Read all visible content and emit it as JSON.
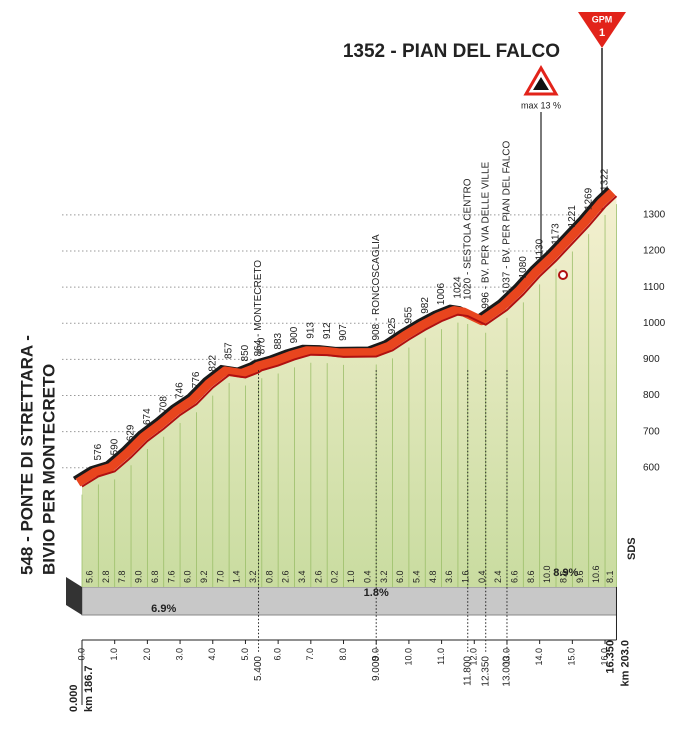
{
  "chart_data": {
    "type": "profile",
    "title": "1352 - PIAN DEL FALCO",
    "start_label": [
      "548 - PONTE DI STRETTARA -",
      "BIVIO PER MONTECRETO"
    ],
    "climb_category": {
      "badge": "GPM",
      "rank": "1"
    },
    "max_gradient": "max 13 %",
    "sponsor_tag": "SDS",
    "x": [
      0,
      0.5,
      1,
      1.5,
      2,
      2.5,
      3,
      3.5,
      4,
      4.5,
      5,
      5.4,
      5.5,
      6,
      6.5,
      7,
      7.5,
      8,
      9,
      9.5,
      10,
      10.5,
      11,
      11.5,
      11.8,
      12.35,
      13,
      13.5,
      14,
      14.5,
      15,
      15.5,
      16,
      16.35
    ],
    "values": [
      548,
      576,
      590,
      629,
      674,
      708,
      746,
      776,
      822,
      857,
      850,
      864,
      870,
      883,
      900,
      913,
      912,
      907,
      908,
      925,
      955,
      982,
      1006,
      1024,
      1020,
      996,
      1037,
      1080,
      1130,
      1173,
      1221,
      1269,
      1322,
      1352
    ],
    "annotations": [
      {
        "x": 5.4,
        "text": "864 - MONTECRETO",
        "km_label": "5.400"
      },
      {
        "x": 9,
        "text": "908 - RONCOSCAGLIA",
        "km_label": "9.000"
      },
      {
        "x": 11.8,
        "text": "1020 - SESTOLA CENTRO",
        "km_label": "11.800"
      },
      {
        "x": 12.35,
        "text": "996 - BV. PER VIA DELLE VILLE",
        "km_label": "12.350"
      },
      {
        "x": 13,
        "text": "1037 - BV. PER PIAN DEL FALCO",
        "km_label": "13.000"
      }
    ],
    "segment_gradients": [
      "5.6",
      "2.8",
      "7.8",
      "9.0",
      "6.8",
      "7.6",
      "6.0",
      "9.2",
      "7.0",
      "1.4",
      "3.2",
      "0.8",
      "2.6",
      "3.4",
      "2.6",
      "0.2",
      "1.0",
      "0.4",
      "3.2",
      "6.0",
      "5.4",
      "4.8",
      "3.6",
      "1.6",
      "0.4",
      "2.4",
      "6.6",
      "8.6",
      "10.0",
      "8.6",
      "9.6",
      "10.6",
      "8.1"
    ],
    "average_gradients": [
      "6.9%",
      "1.8%",
      "8.9%"
    ],
    "start_km": {
      "label": "0.000",
      "race_km": "km 186.7"
    },
    "end_km": {
      "label": "16.350",
      "race_km": "km 203.0"
    },
    "xlim": [
      0,
      16.35
    ],
    "ylim": [
      270,
      1380
    ],
    "xticks": [
      {
        "value": 0,
        "label": "0.0"
      },
      {
        "value": 1,
        "label": "1.0"
      },
      {
        "value": 2,
        "label": "2.0"
      },
      {
        "value": 3,
        "label": "3.0"
      },
      {
        "value": 4,
        "label": "4.0"
      },
      {
        "value": 5,
        "label": "5.0"
      },
      {
        "value": 6,
        "label": "6.0"
      },
      {
        "value": 7,
        "label": "7.0"
      },
      {
        "value": 8,
        "label": "8.0"
      },
      {
        "value": 9,
        "label": "9.0"
      },
      {
        "value": 10,
        "label": "10.0"
      },
      {
        "value": 11,
        "label": "11.0"
      },
      {
        "value": 12,
        "label": "12.0"
      },
      {
        "value": 13,
        "label": "13.0"
      },
      {
        "value": 14,
        "label": "14.0"
      },
      {
        "value": 15,
        "label": "15.0"
      },
      {
        "value": 16,
        "label": "16.0"
      }
    ],
    "yticks": [
      600,
      700,
      800,
      900,
      1000,
      1100,
      1200,
      1300
    ],
    "grid": true,
    "colors": {
      "fill": "#dbe8bf",
      "ridge": "#e8451e",
      "edge": "#1a1a1a",
      "base": "#c8c8c8"
    }
  }
}
